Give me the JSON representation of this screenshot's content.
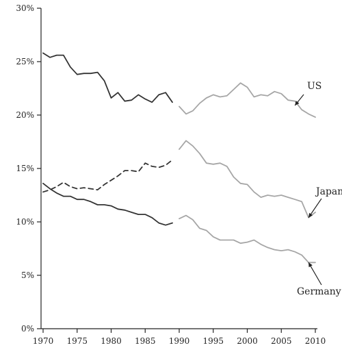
{
  "chart_data": {
    "type": "line",
    "title": "",
    "xlabel": "",
    "ylabel": "",
    "xlim": [
      1970,
      2010
    ],
    "ylim": [
      0,
      30
    ],
    "grid": false,
    "x_ticks": [
      1970,
      1975,
      1980,
      1985,
      1990,
      1995,
      2000,
      2005,
      2010
    ],
    "x_tick_labels": [
      "1970",
      "1975",
      "1980",
      "1985",
      "1990",
      "1995",
      "2000",
      "2005",
      "2010"
    ],
    "y_ticks": [
      0,
      5,
      10,
      15,
      20,
      25,
      30
    ],
    "y_tick_labels": [
      "0%",
      "5%",
      "10%",
      "15%",
      "20%",
      "25%",
      "30%"
    ],
    "colors": {
      "early": "#333333",
      "late": "#a6a6a6"
    },
    "annotations": [
      {
        "text": "US",
        "series": "US",
        "point": [
          2007,
          20.9
        ]
      },
      {
        "text": "Japan",
        "series": "Japan",
        "point": [
          2009,
          10.4
        ]
      },
      {
        "text": "Germany",
        "series": "Germany",
        "point": [
          2009,
          6.2
        ]
      }
    ],
    "series": [
      {
        "name": "US",
        "color": "#333333",
        "dash": "solid",
        "x": [
          1970,
          1971,
          1972,
          1973,
          1974,
          1975,
          1976,
          1977,
          1978,
          1979,
          1980,
          1981,
          1982,
          1983,
          1984,
          1985,
          1986,
          1987,
          1988,
          1989
        ],
        "values": [
          25.8,
          25.4,
          25.6,
          25.6,
          24.5,
          23.8,
          23.9,
          23.9,
          24.0,
          23.2,
          21.6,
          22.1,
          21.3,
          21.4,
          21.9,
          21.5,
          21.2,
          21.9,
          22.1,
          21.2
        ]
      },
      {
        "name": "US",
        "color": "#a6a6a6",
        "dash": "solid",
        "x": [
          1990,
          1991,
          1992,
          1993,
          1994,
          1995,
          1996,
          1997,
          1998,
          1999,
          2000,
          2001,
          2002,
          2003,
          2004,
          2005,
          2006,
          2007,
          2008,
          2009,
          2010
        ],
        "values": [
          20.8,
          20.1,
          20.4,
          21.1,
          21.6,
          21.9,
          21.7,
          21.8,
          22.4,
          23.0,
          22.6,
          21.7,
          21.9,
          21.8,
          22.2,
          22.0,
          21.4,
          21.3,
          20.5,
          20.1,
          19.8
        ]
      },
      {
        "name": "Japan",
        "color": "#333333",
        "dash": "dashed",
        "x": [
          1970,
          1971,
          1972,
          1973,
          1974,
          1975,
          1976,
          1977,
          1978,
          1979,
          1980,
          1981,
          1982,
          1983,
          1984,
          1985,
          1986,
          1987,
          1988,
          1989
        ],
        "values": [
          12.8,
          13.0,
          13.3,
          13.7,
          13.3,
          13.1,
          13.2,
          13.1,
          13.0,
          13.5,
          13.9,
          14.3,
          14.8,
          14.8,
          14.7,
          15.5,
          15.2,
          15.1,
          15.3,
          15.8
        ]
      },
      {
        "name": "Japan",
        "color": "#a6a6a6",
        "dash": "solid",
        "x": [
          1990,
          1991,
          1992,
          1993,
          1994,
          1995,
          1996,
          1997,
          1998,
          1999,
          2000,
          2001,
          2002,
          2003,
          2004,
          2005,
          2006,
          2007,
          2008,
          2009,
          2010
        ],
        "values": [
          16.8,
          17.6,
          17.1,
          16.4,
          15.5,
          15.4,
          15.5,
          15.2,
          14.2,
          13.6,
          13.5,
          12.8,
          12.3,
          12.5,
          12.4,
          12.5,
          12.3,
          12.1,
          11.9,
          10.4,
          10.9
        ]
      },
      {
        "name": "Germany",
        "color": "#333333",
        "dash": "solid",
        "x": [
          1970,
          1971,
          1972,
          1973,
          1974,
          1975,
          1976,
          1977,
          1978,
          1979,
          1980,
          1981,
          1982,
          1983,
          1984,
          1985,
          1986,
          1987,
          1988,
          1989
        ],
        "values": [
          13.6,
          13.1,
          12.7,
          12.4,
          12.4,
          12.1,
          12.1,
          11.9,
          11.6,
          11.6,
          11.5,
          11.2,
          11.1,
          10.9,
          10.7,
          10.7,
          10.4,
          9.9,
          9.7,
          9.9
        ]
      },
      {
        "name": "Germany",
        "color": "#a6a6a6",
        "dash": "solid",
        "x": [
          1990,
          1991,
          1992,
          1993,
          1994,
          1995,
          1996,
          1997,
          1998,
          1999,
          2000,
          2001,
          2002,
          2003,
          2004,
          2005,
          2006,
          2007,
          2008,
          2009,
          2010
        ],
        "values": [
          10.3,
          10.6,
          10.2,
          9.4,
          9.2,
          8.6,
          8.3,
          8.3,
          8.3,
          8.0,
          8.1,
          8.3,
          7.9,
          7.6,
          7.4,
          7.3,
          7.4,
          7.2,
          6.9,
          6.2,
          6.2
        ]
      }
    ]
  }
}
